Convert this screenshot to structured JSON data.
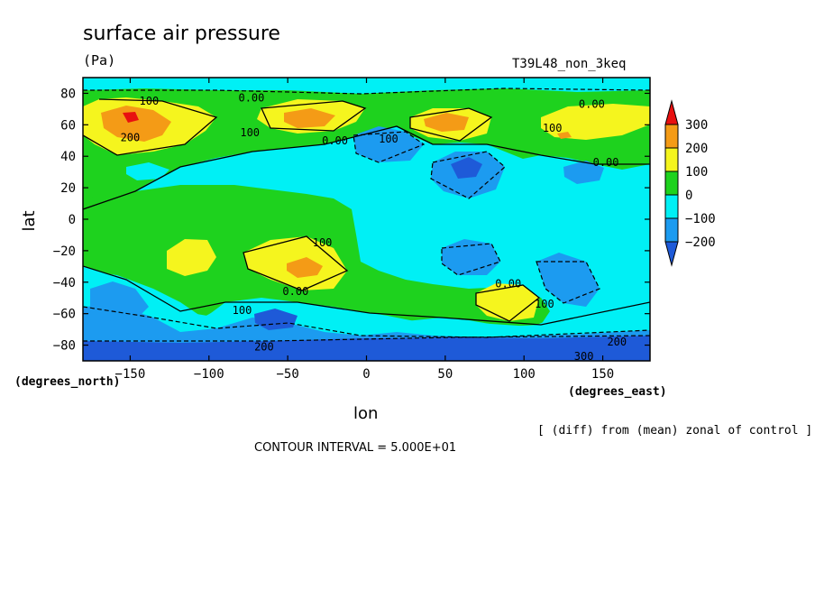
{
  "chart_data": {
    "type": "heatmap",
    "title": "surface air pressure",
    "units": "(Pa)",
    "run_label": "T39L48_non_3keq",
    "xlabel": "lon",
    "ylabel": "lat",
    "x_units": "(degrees_east)",
    "y_units": "(degrees_north)",
    "xlim": [
      -180,
      180
    ],
    "ylim": [
      -90,
      90
    ],
    "x_ticks": [
      -150,
      -100,
      -50,
      0,
      50,
      100,
      150
    ],
    "x_tick_labels": [
      "−150",
      "−100",
      "−50",
      "0",
      "50",
      "100",
      "150"
    ],
    "y_ticks": [
      80,
      60,
      40,
      20,
      0,
      -20,
      -40,
      -60,
      -80
    ],
    "y_tick_labels": [
      "80",
      "60",
      "40",
      "20",
      "0",
      "−20",
      "−40",
      "−60",
      "−80"
    ],
    "note": "[ (diff) from (mean) zonal of control ]",
    "contour_interval": "CONTOUR INTERVAL = 5.000E+01",
    "colorbar": {
      "levels": [
        300,
        200,
        100,
        0,
        -100,
        -200
      ],
      "labels": [
        "300",
        "200",
        "100",
        "0",
        "−100",
        "−200"
      ],
      "colors": [
        "#e81010",
        "#f49b16",
        "#f5f51e",
        "#1ed21e",
        "#00f0f5",
        "#1c9bf0",
        "#1e5ad8"
      ]
    },
    "contour_labels": [
      {
        "lon": -138,
        "lat": 75,
        "text": "100"
      },
      {
        "lon": -150,
        "lat": 52,
        "text": "200"
      },
      {
        "lon": -73,
        "lat": 77,
        "text": "0.00"
      },
      {
        "lon": -74,
        "lat": 55,
        "text": "100"
      },
      {
        "lon": -20,
        "lat": 50,
        "text": "0.00"
      },
      {
        "lon": 14,
        "lat": 51,
        "text": "100"
      },
      {
        "lon": 143,
        "lat": 73,
        "text": "0.00"
      },
      {
        "lon": 118,
        "lat": 58,
        "text": "100"
      },
      {
        "lon": 152,
        "lat": 36,
        "text": "0.00"
      },
      {
        "lon": -28,
        "lat": -15,
        "text": "100"
      },
      {
        "lon": -45,
        "lat": -46,
        "text": "0.00"
      },
      {
        "lon": 90,
        "lat": -41,
        "text": "0.00"
      },
      {
        "lon": 113,
        "lat": -54,
        "text": "100"
      },
      {
        "lon": -79,
        "lat": -58,
        "text": "100"
      },
      {
        "lon": -65,
        "lat": -81,
        "text": "200"
      },
      {
        "lon": 159,
        "lat": -78,
        "text": "200"
      },
      {
        "lon": 138,
        "lat": -87,
        "text": "300"
      }
    ]
  }
}
